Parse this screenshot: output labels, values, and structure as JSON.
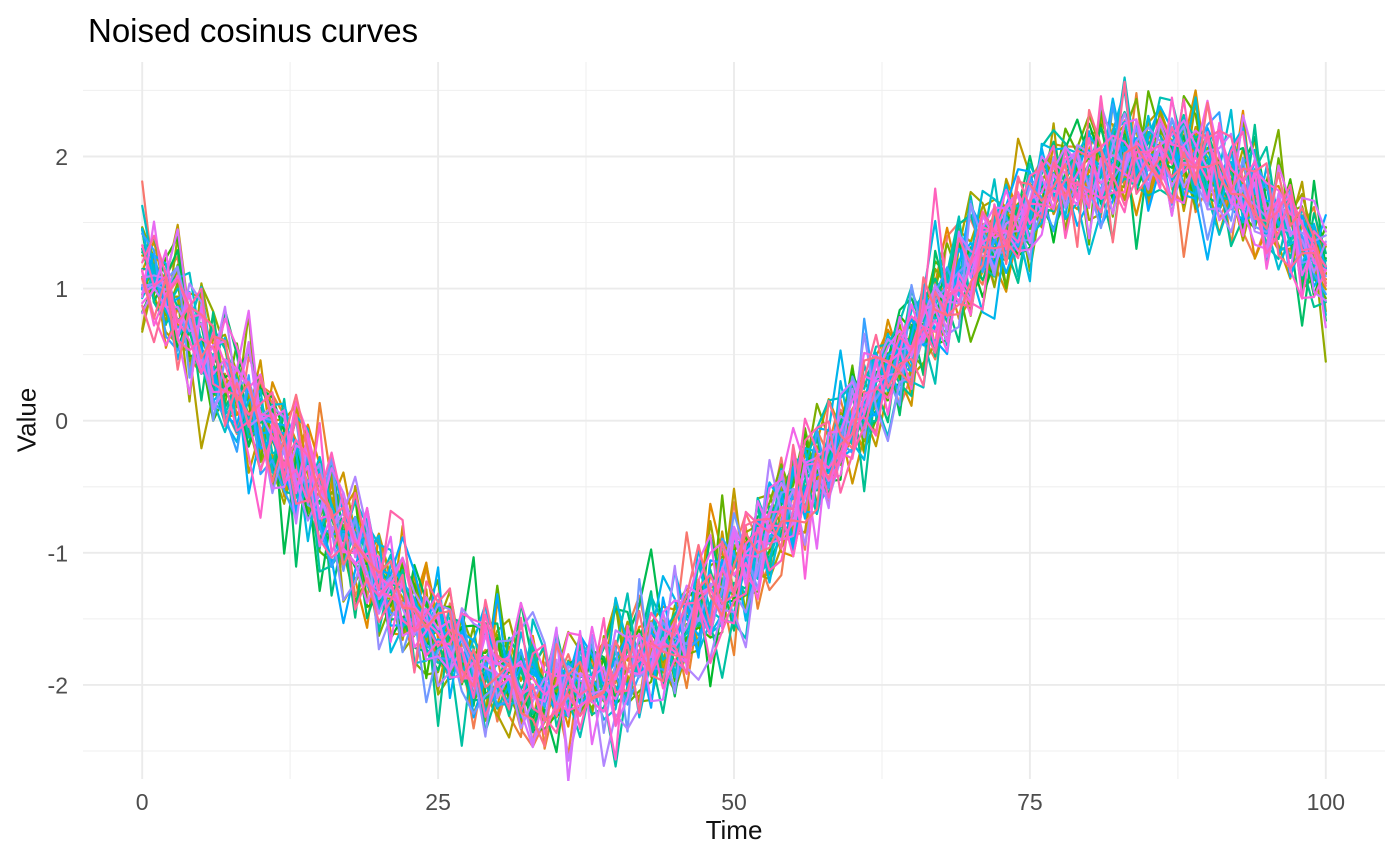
{
  "chart_data": {
    "type": "line",
    "title": "Noised cosinus curves",
    "xlabel": "Time",
    "ylabel": "Value",
    "x_ticks": [
      0,
      25,
      50,
      75,
      100
    ],
    "y_ticks": [
      -2,
      -1,
      0,
      1,
      2
    ],
    "x_minor_gridlines": [
      12.5,
      37.5,
      62.5,
      87.5
    ],
    "y_minor_gridlines": [
      -2.5,
      -1.5,
      -0.5,
      0.5,
      1.5,
      2.5
    ],
    "xlim": [
      -5,
      105
    ],
    "ylim": [
      -2.712,
      2.715
    ],
    "x": {
      "min": 0,
      "max": 100,
      "step": 1
    },
    "n_series": 40,
    "points_per_series": 101,
    "base_function": "value = 2 * cos(2*pi*(t + 15)/100) + gaussian_noise",
    "amplitude": 2,
    "period": 100,
    "phase_shift": 15,
    "trough": {
      "t": 35,
      "value": -2
    },
    "peak": {
      "t": 85,
      "value": 2
    },
    "start_value": 1.18,
    "noise_sd": 0.23,
    "seed": 7,
    "legend": "none",
    "style": {
      "background": "#FFFFFF",
      "grid_major_color": "#EBEBEB",
      "grid_minor_color": "#EFEFEF",
      "grid_major_width": 1.9,
      "grid_minor_width": 1.05,
      "line_width": 2.2,
      "tick_label_color": "#4D4D4D",
      "axis_title_color": "#111111",
      "title_color": "#000000",
      "palette": {
        "model": "hcl",
        "hue_start": 15,
        "hue_end": 375,
        "chroma": 100,
        "luminance": 65
      }
    }
  }
}
